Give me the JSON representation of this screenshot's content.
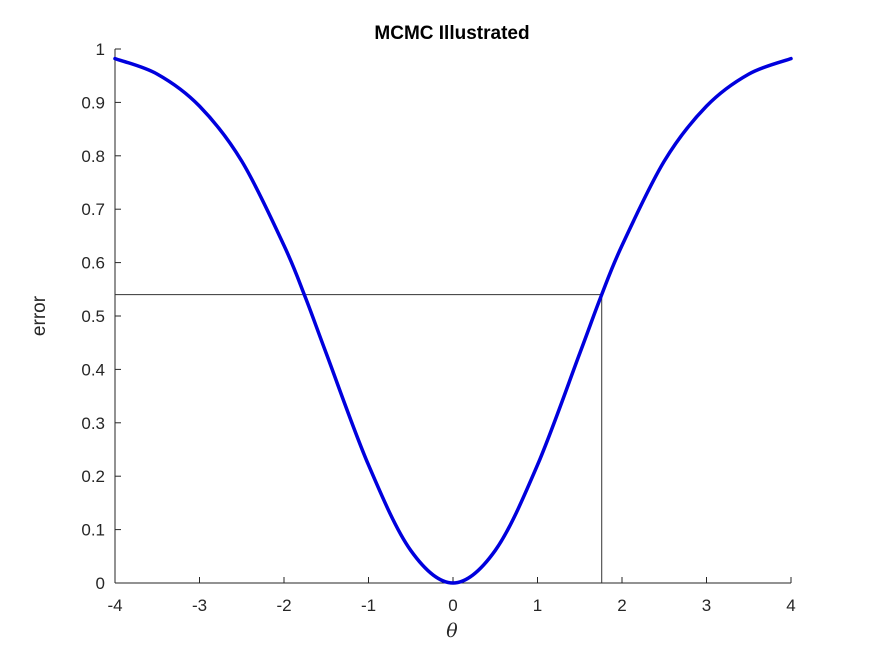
{
  "chart_data": {
    "type": "line",
    "title": "MCMC Illustrated",
    "xlabel": "θ",
    "ylabel": "error",
    "xlim": [
      -4,
      4
    ],
    "ylim": [
      0,
      1
    ],
    "xticks": [
      "-4",
      "-3",
      "-2",
      "-1",
      "0",
      "1",
      "2",
      "3",
      "4"
    ],
    "yticks": [
      "0",
      "0.1",
      "0.2",
      "0.3",
      "0.4",
      "0.5",
      "0.6",
      "0.7",
      "0.8",
      "0.9",
      "1"
    ],
    "grid": false,
    "series": [
      {
        "color": "#0000dd",
        "x": [
          -4,
          -3.5,
          -3,
          -2.5,
          -2,
          -1.75,
          -1.5,
          -1,
          -0.5,
          0,
          0.5,
          1,
          1.5,
          1.75,
          2,
          2.5,
          3,
          3.5,
          4
        ],
        "y": [
          0.982,
          0.953,
          0.893,
          0.79,
          0.632,
          0.536,
          0.43,
          0.221,
          0.061,
          0,
          0.061,
          0.221,
          0.43,
          0.536,
          0.632,
          0.79,
          0.893,
          0.953,
          0.982
        ]
      }
    ],
    "reference_lines": [
      {
        "type": "horizontal",
        "y": 0.54,
        "x_from": -4,
        "x_to": 1.76,
        "color": "#333333"
      },
      {
        "type": "vertical",
        "x": 1.76,
        "y_from": 0,
        "y_to": 0.54,
        "color": "#333333"
      }
    ]
  }
}
